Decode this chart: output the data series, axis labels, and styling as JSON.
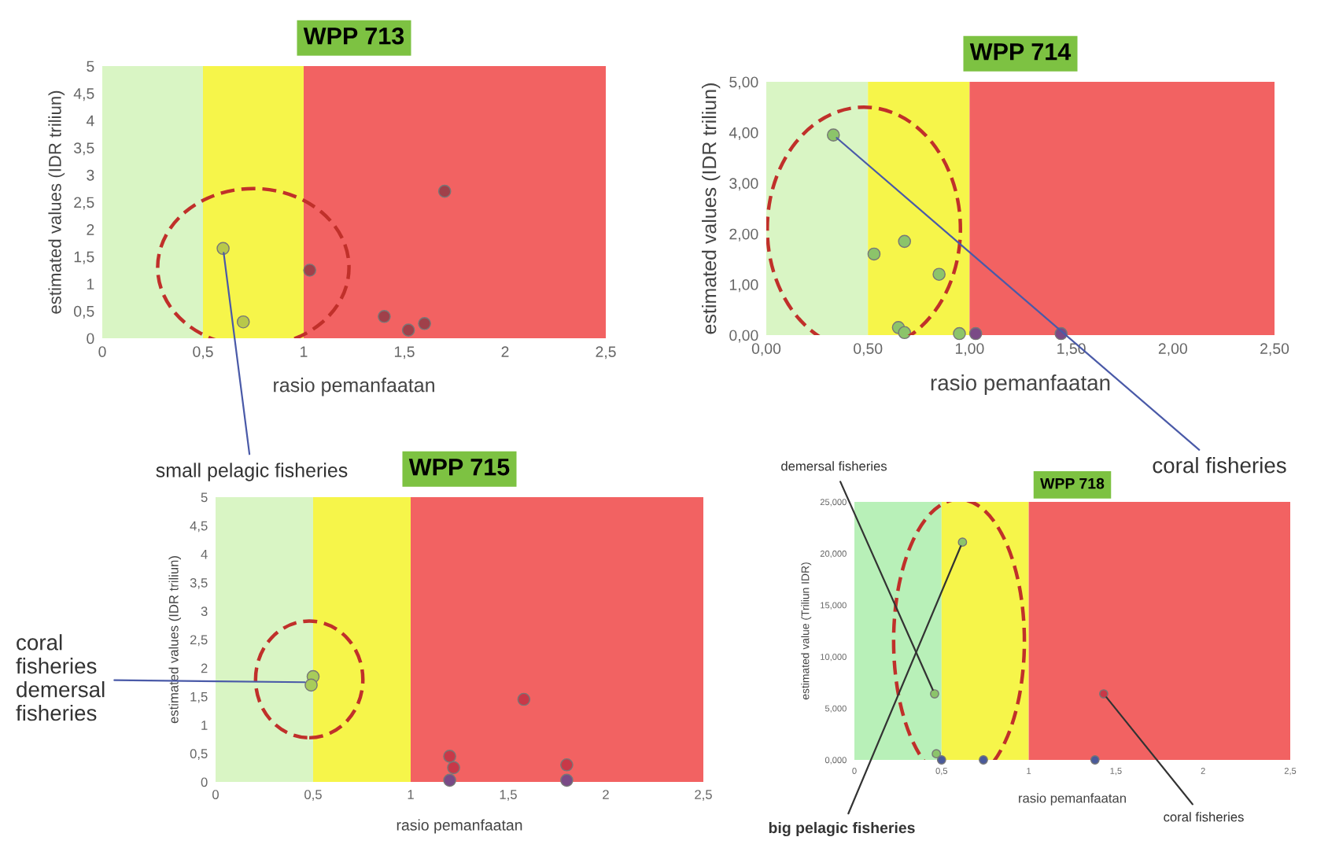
{
  "chart_data": [
    {
      "type": "scatter",
      "title": "WPP 713",
      "xlabel": "rasio pemanfaatan",
      "ylabel": "estimated values (IDR triliun)",
      "xlim": [
        0,
        2.5
      ],
      "ylim": [
        0,
        5
      ],
      "xticks": [
        0,
        {
          "value": 0.5,
          "label": "0,5"
        },
        1,
        {
          "value": 1.5,
          "label": "1,5"
        },
        2,
        {
          "value": 2.5,
          "label": "2,5"
        }
      ],
      "yticks": [
        0,
        {
          "value": 0.5,
          "label": "0,5"
        },
        1,
        {
          "value": 1.5,
          "label": "1,5"
        },
        2,
        {
          "value": 2.5,
          "label": "2,5"
        },
        3,
        {
          "value": 3.5,
          "label": "3,5"
        },
        4,
        {
          "value": 4.5,
          "label": "4,5"
        },
        5
      ],
      "marker": "circle",
      "series": [
        {
          "x": [
            0.6,
            0.7,
            1.03,
            1.4,
            1.52,
            1.6,
            1.7
          ],
          "values": [
            1.65,
            0.3,
            1.25,
            0.4,
            0.15,
            0.27,
            2.7
          ],
          "colors": [
            "#b8c84a",
            "#b8c84a",
            "#a0404a",
            "#a0404a",
            "#a0404a",
            "#a0404a",
            "#a0404a"
          ]
        }
      ],
      "bands": [
        {
          "axis": "x",
          "from": 0,
          "to": 0.5,
          "color": "#d9f5c4"
        },
        {
          "axis": "x",
          "from": 0.5,
          "to": 1,
          "color": "#f6f54a"
        },
        {
          "axis": "x",
          "from": 1,
          "to": 2.5,
          "color": "#f26262"
        }
      ],
      "annotations": [
        {
          "text": "small pelagic fisheries",
          "x": 0.6,
          "y": 1.65
        }
      ]
    },
    {
      "type": "scatter",
      "title": "WPP 714",
      "xlabel": "rasio pemanfaatan",
      "ylabel": "estimated values (IDR triliun)",
      "xlim": [
        0,
        2.5
      ],
      "ylim": [
        0,
        5
      ],
      "xticks": [
        {
          "value": 0,
          "label": "0,00"
        },
        {
          "value": 0.5,
          "label": "0,50"
        },
        {
          "value": 1,
          "label": "1,00"
        },
        {
          "value": 1.5,
          "label": "1,50"
        },
        {
          "value": 2,
          "label": "2,00"
        },
        {
          "value": 2.5,
          "label": "2,50"
        }
      ],
      "yticks": [
        {
          "value": 0,
          "label": "0,00"
        },
        {
          "value": 1,
          "label": "1,00"
        },
        {
          "value": 2,
          "label": "2,00"
        },
        {
          "value": 3,
          "label": "3,00"
        },
        {
          "value": 4,
          "label": "4,00"
        },
        {
          "value": 5,
          "label": "5,00"
        }
      ],
      "marker": "circle",
      "series": [
        {
          "x": [
            0.33,
            0.53,
            0.68,
            0.85,
            0.65,
            0.68,
            0.95,
            1.03,
            1.45
          ],
          "values": [
            3.95,
            1.6,
            1.85,
            1.2,
            0.15,
            0.05,
            0.03,
            0.03,
            0.03
          ],
          "colors": [
            "#8cc46a",
            "#8cc46a",
            "#8cc46a",
            "#8cc46a",
            "#8cc46a",
            "#8cc46a",
            "#8cc46a",
            "#7a4a86",
            "#7a4a86"
          ]
        }
      ],
      "bands": [
        {
          "axis": "x",
          "from": 0,
          "to": 0.5,
          "color": "#d9f5c4"
        },
        {
          "axis": "x",
          "from": 0.5,
          "to": 1,
          "color": "#f6f54a"
        },
        {
          "axis": "x",
          "from": 1,
          "to": 2.5,
          "color": "#f26262"
        }
      ],
      "annotations": [
        {
          "text": "coral fisheries",
          "x": 0.33,
          "y": 3.95
        }
      ]
    },
    {
      "type": "scatter",
      "title": "WPP 715",
      "xlabel": "rasio pemanfaatan",
      "ylabel": "estimated values (IDR triliun)",
      "xlim": [
        0,
        2.5
      ],
      "ylim": [
        0,
        5
      ],
      "xticks": [
        0,
        {
          "value": 0.5,
          "label": "0,5"
        },
        1,
        {
          "value": 1.5,
          "label": "1,5"
        },
        2,
        {
          "value": 2.5,
          "label": "2,5"
        }
      ],
      "yticks": [
        0,
        {
          "value": 0.5,
          "label": "0,5"
        },
        1,
        {
          "value": 1.5,
          "label": "1,5"
        },
        2,
        {
          "value": 2.5,
          "label": "2,5"
        },
        3,
        {
          "value": 3.5,
          "label": "3,5"
        },
        4,
        {
          "value": 4.5,
          "label": "4,5"
        },
        5
      ],
      "marker": "circle",
      "series": [
        {
          "x": [
            0.5,
            0.49,
            1.2,
            1.22,
            1.2,
            1.58,
            1.8,
            1.8
          ],
          "values": [
            1.85,
            1.7,
            0.45,
            0.25,
            0.03,
            1.45,
            0.3,
            0.03
          ],
          "colors": [
            "#a8cc5a",
            "#a8cc5a",
            "#c83848",
            "#c83848",
            "#7a4a86",
            "#c83848",
            "#c83848",
            "#7a4a86"
          ]
        }
      ],
      "bands": [
        {
          "axis": "x",
          "from": 0,
          "to": 0.5,
          "color": "#d9f5c4"
        },
        {
          "axis": "x",
          "from": 0.5,
          "to": 1,
          "color": "#f6f54a"
        },
        {
          "axis": "x",
          "from": 1,
          "to": 2.5,
          "color": "#f26262"
        }
      ],
      "annotations": [
        {
          "text": "coral\nfisheries\ndemersal\nfisheries",
          "x": 0.48,
          "y": 1.75
        }
      ]
    },
    {
      "type": "scatter",
      "title": "WPP 718",
      "xlabel": "rasio pemanfaatan",
      "ylabel": "estimated value (Triliun IDR)",
      "xlim": [
        0,
        2.5
      ],
      "ylim": [
        0,
        25
      ],
      "xticks": [
        0,
        {
          "value": 0.5,
          "label": "0,5"
        },
        1,
        {
          "value": 1.5,
          "label": "1,5"
        },
        2,
        {
          "value": 2.5,
          "label": "2,5"
        }
      ],
      "yticks": [
        {
          "value": 0,
          "label": "0,000"
        },
        {
          "value": 5,
          "label": "5,000"
        },
        {
          "value": 10,
          "label": "10,000"
        },
        {
          "value": 15,
          "label": "15,000"
        },
        {
          "value": 20,
          "label": "20,000"
        },
        {
          "value": 25,
          "label": "25,000"
        }
      ],
      "marker": "circle",
      "series": [
        {
          "x": [
            0.62,
            0.46,
            1.43,
            0.47,
            0.5,
            0.74,
            1.38
          ],
          "values": [
            21.1,
            6.4,
            6.4,
            0.6,
            0,
            0,
            0
          ],
          "colors": [
            "#8cc46a",
            "#8cc46a",
            "#c83848",
            "#8cc46a",
            "#4a5a9a",
            "#4a5a9a",
            "#4a5a9a"
          ]
        }
      ],
      "bands": [
        {
          "axis": "x",
          "from": 0,
          "to": 0.5,
          "color": "#b8f0b8"
        },
        {
          "axis": "x",
          "from": 0.5,
          "to": 1,
          "color": "#f6f54a"
        },
        {
          "axis": "x",
          "from": 1,
          "to": 2.5,
          "color": "#f26262"
        }
      ],
      "annotations": [
        {
          "text": "demersal fisheries",
          "x": 0.46,
          "y": 6.4
        },
        {
          "text": "big pelagic fisheries",
          "x": 0.62,
          "y": 21.1
        },
        {
          "text": "coral fisheries",
          "x": 1.43,
          "y": 6.4
        }
      ]
    }
  ]
}
